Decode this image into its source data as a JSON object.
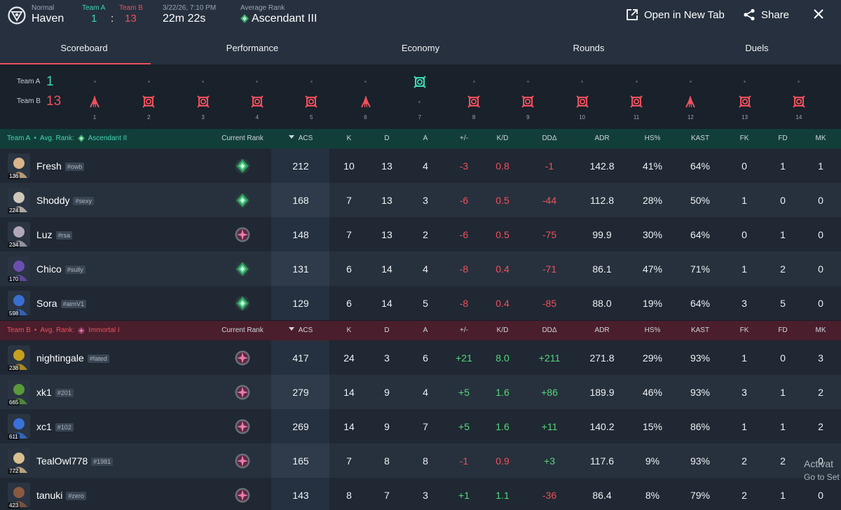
{
  "header": {
    "queue": "Normal",
    "map": "Haven",
    "team_a_label": "Team A",
    "team_b_label": "Team B",
    "team_a_score": "1",
    "colon": ":",
    "team_b_score": "13",
    "datetime": "3/22/26, 7:10 PM",
    "duration": "22m 22s",
    "avg_rank_label": "Average Rank",
    "avg_rank": "Ascendant III",
    "open_new_tab": "Open in New Tab",
    "share": "Share"
  },
  "tabs": [
    "Scoreboard",
    "Performance",
    "Economy",
    "Rounds",
    "Duels"
  ],
  "timeline": {
    "team_a_label": "Team A",
    "team_b_label": "Team B",
    "team_a_score": "1",
    "team_b_score": "13",
    "rounds": [
      {
        "n": "1",
        "winner": "B",
        "type": "spike"
      },
      {
        "n": "2",
        "winner": "B",
        "type": "elim"
      },
      {
        "n": "3",
        "winner": "B",
        "type": "elim"
      },
      {
        "n": "4",
        "winner": "B",
        "type": "elim"
      },
      {
        "n": "5",
        "winner": "B",
        "type": "elim"
      },
      {
        "n": "6",
        "winner": "B",
        "type": "spike"
      },
      {
        "n": "7",
        "winner": "A",
        "type": "elim"
      },
      {
        "n": "8",
        "winner": "B",
        "type": "elim"
      },
      {
        "n": "9",
        "winner": "B",
        "type": "elim"
      },
      {
        "n": "10",
        "winner": "B",
        "type": "elim"
      },
      {
        "n": "11",
        "winner": "B",
        "type": "elim"
      },
      {
        "n": "12",
        "winner": "B",
        "type": "spike"
      },
      {
        "n": "13",
        "winner": "B",
        "type": "elim"
      },
      {
        "n": "14",
        "winner": "B",
        "type": "elim"
      }
    ]
  },
  "columns": [
    "Current Rank",
    "ACS",
    "K",
    "D",
    "A",
    "+/-",
    "K/D",
    "DDΔ",
    "ADR",
    "HS%",
    "KAST",
    "FK",
    "FD",
    "MK"
  ],
  "team_a": {
    "label": "Team A",
    "sep": "•",
    "avg_label": "Avg. Rank:",
    "avg_rank": "Ascendant II",
    "players": [
      {
        "name": "Fresh",
        "tag": "#owb",
        "level": "136",
        "rank": "ascendant",
        "acs": "212",
        "k": "10",
        "d": "13",
        "a": "4",
        "pm": "-3",
        "kd": "0.8",
        "dd": "-1",
        "adr": "142.8",
        "hs": "41%",
        "kast": "64%",
        "fk": "0",
        "fd": "1",
        "mk": "1"
      },
      {
        "name": "Shoddy",
        "tag": "#sexy",
        "level": "224",
        "rank": "ascendant",
        "acs": "168",
        "k": "7",
        "d": "13",
        "a": "3",
        "pm": "-6",
        "kd": "0.5",
        "dd": "-44",
        "adr": "112.8",
        "hs": "28%",
        "kast": "50%",
        "fk": "1",
        "fd": "0",
        "mk": "0"
      },
      {
        "name": "Luz",
        "tag": "#rsa",
        "level": "234",
        "rank": "immortal",
        "acs": "148",
        "k": "7",
        "d": "13",
        "a": "2",
        "pm": "-6",
        "kd": "0.5",
        "dd": "-75",
        "adr": "99.9",
        "hs": "30%",
        "kast": "64%",
        "fk": "0",
        "fd": "1",
        "mk": "0"
      },
      {
        "name": "Chico",
        "tag": "#sully",
        "level": "170",
        "rank": "ascendant",
        "acs": "131",
        "k": "6",
        "d": "14",
        "a": "4",
        "pm": "-8",
        "kd": "0.4",
        "dd": "-71",
        "adr": "86.1",
        "hs": "47%",
        "kast": "71%",
        "fk": "1",
        "fd": "2",
        "mk": "0"
      },
      {
        "name": "Sora",
        "tag": "#aimV1",
        "level": "598",
        "rank": "ascendant",
        "acs": "129",
        "k": "6",
        "d": "14",
        "a": "5",
        "pm": "-8",
        "kd": "0.4",
        "dd": "-85",
        "adr": "88.0",
        "hs": "19%",
        "kast": "64%",
        "fk": "3",
        "fd": "5",
        "mk": "0"
      }
    ]
  },
  "team_b": {
    "label": "Team B",
    "sep": "•",
    "avg_label": "Avg. Rank:",
    "avg_rank": "Immortal I",
    "players": [
      {
        "name": "nightingale",
        "tag": "#fated",
        "level": "238",
        "rank": "immortal",
        "acs": "417",
        "k": "24",
        "d": "3",
        "a": "6",
        "pm": "+21",
        "kd": "8.0",
        "dd": "+211",
        "adr": "271.8",
        "hs": "29%",
        "kast": "93%",
        "fk": "1",
        "fd": "0",
        "mk": "3"
      },
      {
        "name": "xk1",
        "tag": "#201",
        "level": "665",
        "rank": "immortal",
        "acs": "279",
        "k": "14",
        "d": "9",
        "a": "4",
        "pm": "+5",
        "kd": "1.6",
        "dd": "+86",
        "adr": "189.9",
        "hs": "46%",
        "kast": "93%",
        "fk": "3",
        "fd": "1",
        "mk": "2"
      },
      {
        "name": "xc1",
        "tag": "#102",
        "level": "611",
        "rank": "immortal",
        "acs": "269",
        "k": "14",
        "d": "9",
        "a": "7",
        "pm": "+5",
        "kd": "1.6",
        "dd": "+11",
        "adr": "140.2",
        "hs": "15%",
        "kast": "86%",
        "fk": "1",
        "fd": "1",
        "mk": "2"
      },
      {
        "name": "TealOwl778",
        "tag": "#1981",
        "level": "772",
        "rank": "immortal",
        "acs": "165",
        "k": "7",
        "d": "8",
        "a": "8",
        "pm": "-1",
        "kd": "0.9",
        "dd": "+3",
        "adr": "117.6",
        "hs": "9%",
        "kast": "93%",
        "fk": "2",
        "fd": "2",
        "mk": "0"
      },
      {
        "name": "tanuki",
        "tag": "#zero",
        "level": "423",
        "rank": "immortal",
        "acs": "143",
        "k": "8",
        "d": "7",
        "a": "3",
        "pm": "+1",
        "kd": "1.1",
        "dd": "-36",
        "adr": "86.4",
        "hs": "8%",
        "kast": "79%",
        "fk": "2",
        "fd": "1",
        "mk": "0"
      }
    ]
  },
  "watermark": {
    "line1": "Activat",
    "line2": "Go to Set"
  },
  "colors": {
    "team_a": "#3fd8b0",
    "team_b": "#f0505c",
    "positive": "#56d67a",
    "accent": "#e8505a"
  },
  "avatar_colors": [
    "#d9b48a",
    "#cfc8b8",
    "#b0a8b8",
    "#6a4fb0",
    "#3a6fd0",
    "#c8a020",
    "#5a9a3a",
    "#3a70d8",
    "#d8c090",
    "#8a5a40"
  ]
}
